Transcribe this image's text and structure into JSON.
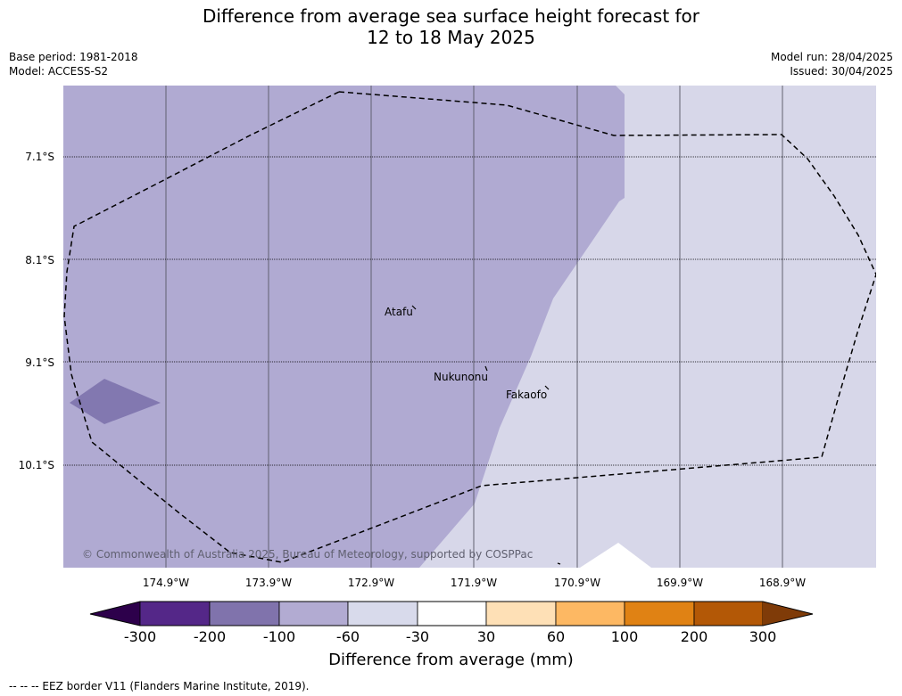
{
  "title": {
    "line1": "Difference from average sea surface height forecast for",
    "line2": "12 to 18 May 2025"
  },
  "meta": {
    "base_period": "Base period: 1981-2018",
    "model": "Model: ACCESS-S2",
    "model_run": "Model run: 28/04/2025",
    "issued": "Issued: 30/04/2025"
  },
  "map": {
    "lat_labels": [
      "7.1°S",
      "8.1°S",
      "9.1°S",
      "10.1°S"
    ],
    "lon_labels": [
      "174.9°W",
      "173.9°W",
      "172.9°W",
      "171.9°W",
      "170.9°W",
      "169.9°W",
      "168.9°W"
    ],
    "islands": [
      "Atafu",
      "Nukunonu",
      "Fakaofo"
    ],
    "copyright": "© Commonwealth of Australia 2025, Bureau of Meteorology, supported by COSPPac",
    "colors": {
      "band_-100_-60": "#b0aad2",
      "band_-60_-30": "#d7d7e9",
      "band_-200_-100": "#8278b0",
      "band_-30_30": "#ffffff",
      "grid": "#606070"
    }
  },
  "colorbar": {
    "ticks": [
      "-300",
      "-200",
      "-100",
      "-60",
      "-30",
      "30",
      "60",
      "100",
      "200",
      "300"
    ],
    "colors": [
      "#2d004b",
      "#542788",
      "#8073ac",
      "#b2abd2",
      "#d8daeb",
      "#ffffff",
      "#fee0b6",
      "#fdb863",
      "#e08214",
      "#b35806",
      "#7f3b08"
    ],
    "label": "Difference from average (mm)"
  },
  "footer": "--  --  -- EEZ border V11 (Flanders Marine Institute, 2019)."
}
